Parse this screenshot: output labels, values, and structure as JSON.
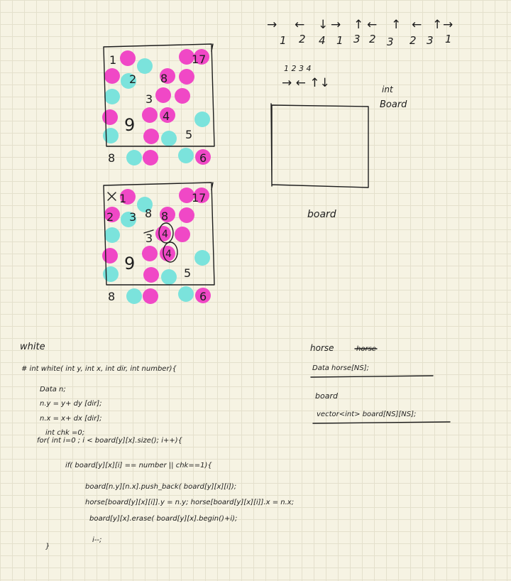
{
  "colors": {
    "ink": "#1d1d1d",
    "magenta": "#f048c6",
    "cyan": "#7be3dc",
    "paper": "#f6f3e3"
  },
  "directions": {
    "sequence": [
      {
        "arrow": "→",
        "number": "1"
      },
      {
        "arrow": "←",
        "number": "2"
      },
      {
        "arrow": "↓",
        "number": "4"
      },
      {
        "arrow": "→",
        "number": "1"
      },
      {
        "arrow": "↑",
        "number": "3"
      },
      {
        "arrow": "←",
        "number": "2"
      },
      {
        "arrow": "↑",
        "number": "3"
      },
      {
        "arrow": "←",
        "number": "2"
      },
      {
        "arrow": "↑",
        "number": "3"
      },
      {
        "arrow": "→",
        "number": "1"
      }
    ],
    "legend_numbers": "1 2 3 4",
    "legend_arrows": "→ ← ↑↓"
  },
  "board_diagram": {
    "label_int": "int",
    "label_board_top": "Board",
    "label_board_bottom": "board"
  },
  "grid1": {
    "numbers": [
      "1",
      "17",
      "2",
      "8",
      "3",
      "9",
      "4",
      "5",
      "8",
      "6"
    ]
  },
  "grid2": {
    "numbers": [
      "1",
      "17",
      "2",
      "3",
      "8",
      "3",
      "8",
      "4",
      "9",
      "5",
      "8",
      "6"
    ]
  },
  "code": {
    "title": "white",
    "lines": [
      "# int white( int y, int x, int dir, int number){",
      "Data n;",
      "n.y = y+ dy [dir];",
      "n.x = x+ dx [dir];",
      "int chk =0;",
      "for( int i=0 ; i < board[y][x].size(); i++){",
      "if( board[y][x][i] == number || chk==1){",
      "board[n.y][n.x].push_back( board[y][x][i]);",
      "horse[board[y][x][i]].y = n.y;   horse[board[y][x][i]].x = n.x;",
      "board[y][x].erase( board[y][x].begin()+i);",
      "i--;",
      "}"
    ]
  },
  "notes": {
    "horse_title": "horse",
    "horse_struck": "horse",
    "horse_decl": "Data horse[NS];",
    "board_title": "board",
    "board_decl": "vector<int> board[NS][NS];"
  }
}
